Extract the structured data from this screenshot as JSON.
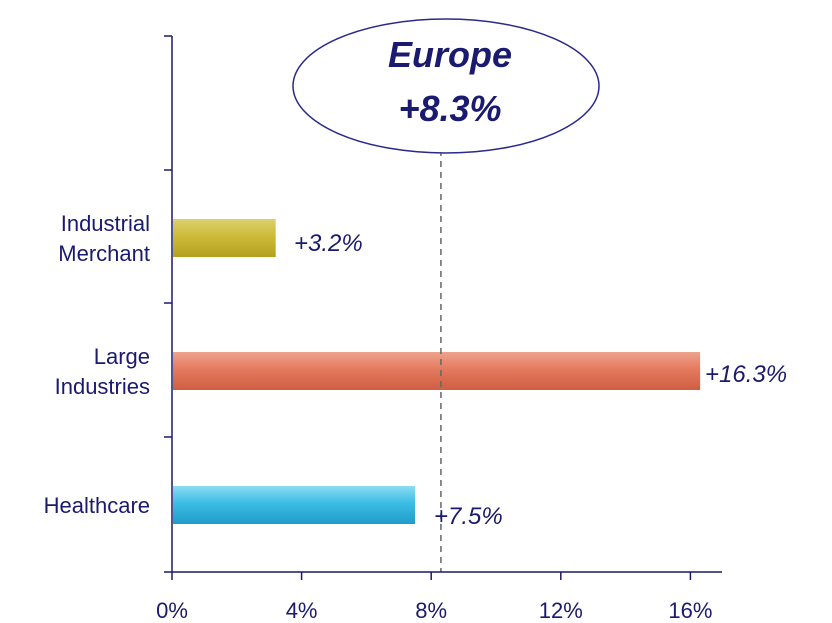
{
  "chart_data": {
    "type": "bar",
    "orientation": "horizontal",
    "categories": [
      "Industrial Merchant",
      "Large Industries",
      "Healthcare"
    ],
    "category_label_lines": [
      [
        "Industrial",
        "Merchant"
      ],
      [
        "Large",
        "Industries"
      ],
      [
        "Healthcare"
      ]
    ],
    "values": [
      3.2,
      16.3,
      7.5
    ],
    "value_labels": [
      "+3.2%",
      "+16.3%",
      "+7.5%"
    ],
    "xlim": [
      0,
      17
    ],
    "xticks": [
      0,
      4,
      8,
      12,
      16
    ],
    "xtick_labels": [
      "0%",
      "4%",
      "8%",
      "12%",
      "16%"
    ],
    "grid": false,
    "legend": "none",
    "reference_line": {
      "value": 8.3,
      "style": "dashed"
    },
    "callout": {
      "line1": "Europe",
      "line2": "+8.3%"
    },
    "colors": {
      "Industrial Merchant": "#c9b730",
      "Large Industries": "#e2765a",
      "Healthcare": "#34b8e0",
      "axis": "#1a1a6e",
      "text": "#1a1a6e",
      "reference_line": "#666666"
    },
    "title": "",
    "xlabel": "",
    "ylabel": ""
  }
}
